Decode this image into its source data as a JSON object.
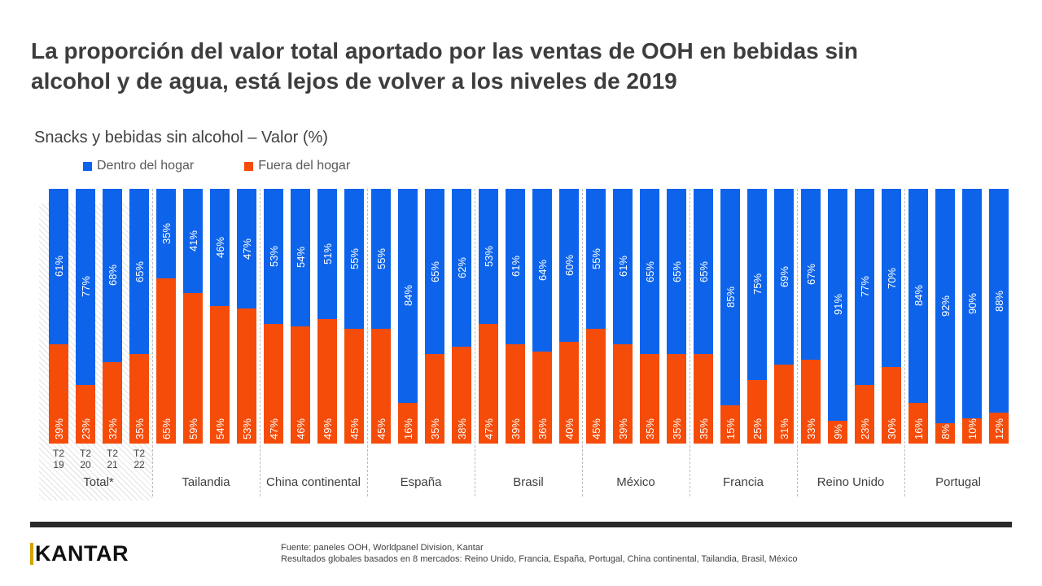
{
  "title": {
    "line1": "La proporción del valor total aportado por las ventas de OOH en bebidas sin",
    "line2": "alcohol y de agua, está lejos de volver a los niveles de 2019"
  },
  "subtitle": "Snacks y bebidas sin alcohol – Valor (%)",
  "legend": [
    {
      "label": "Dentro del hogar",
      "color": "#0d64eb"
    },
    {
      "label": "Fuera del hogar",
      "color": "#f54c0a"
    }
  ],
  "chart_data": {
    "type": "bar",
    "stacked": true,
    "unit": "%",
    "ylim": [
      0,
      100
    ],
    "legend_position": "top-left",
    "colors": {
      "dentro_del_hogar": "#0d64eb",
      "fuera_del_hogar": "#f54c0a"
    },
    "series_names": [
      "Dentro del hogar",
      "Fuera del hogar"
    ],
    "groups": [
      {
        "label": "Total*",
        "highlighted": true,
        "ticks": [
          [
            "T2",
            "19"
          ],
          [
            "T2",
            "20"
          ],
          [
            "T2",
            "21"
          ],
          [
            "T2",
            "22"
          ]
        ],
        "dentro_del_hogar": [
          61,
          77,
          68,
          65
        ],
        "fuera_del_hogar": [
          39,
          23,
          32,
          35
        ]
      },
      {
        "label": "Tailandia",
        "dentro_del_hogar": [
          35,
          41,
          46,
          47
        ],
        "fuera_del_hogar": [
          65,
          59,
          54,
          53
        ]
      },
      {
        "label": "China continental",
        "dentro_del_hogar": [
          53,
          54,
          51,
          55
        ],
        "fuera_del_hogar": [
          47,
          46,
          49,
          45
        ]
      },
      {
        "label": "España",
        "dentro_del_hogar": [
          55,
          84,
          65,
          62
        ],
        "fuera_del_hogar": [
          45,
          16,
          35,
          38
        ]
      },
      {
        "label": "Brasil",
        "dentro_del_hogar": [
          53,
          61,
          64,
          60
        ],
        "fuera_del_hogar": [
          47,
          39,
          36,
          40
        ]
      },
      {
        "label": "México",
        "dentro_del_hogar": [
          55,
          61,
          65,
          65
        ],
        "fuera_del_hogar": [
          45,
          39,
          35,
          35
        ]
      },
      {
        "label": "Francia",
        "dentro_del_hogar": [
          65,
          85,
          75,
          69
        ],
        "fuera_del_hogar": [
          35,
          15,
          25,
          31
        ]
      },
      {
        "label": "Reino Unido",
        "dentro_del_hogar": [
          67,
          91,
          77,
          70
        ],
        "fuera_del_hogar": [
          33,
          9,
          23,
          30
        ]
      },
      {
        "label": "Portugal",
        "dentro_del_hogar": [
          84,
          92,
          90,
          88
        ],
        "fuera_del_hogar": [
          16,
          8,
          10,
          12
        ]
      }
    ]
  },
  "footer": {
    "logo_text": "KANTAR",
    "logo_accent_color": "#d2a400",
    "source_line1": "Fuente: paneles OOH, Worldpanel Division, Kantar",
    "source_line2": "Resultados globales basados en 8 mercados: Reino Unido, Francia, España, Portugal, China continental, Tailandia,  Brasil, México"
  }
}
